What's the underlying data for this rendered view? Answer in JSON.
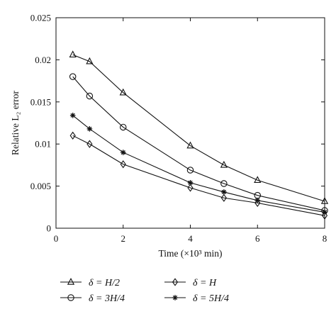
{
  "chart_data": {
    "type": "line",
    "xlabel": "Time (×10³ min)",
    "ylabel": "Relative L₂ error",
    "xlim": [
      0,
      8
    ],
    "ylim": [
      0,
      0.025
    ],
    "x_ticks": [
      0,
      2,
      4,
      6,
      8
    ],
    "x_tick_labels": [
      "0",
      "2",
      "4",
      "6",
      "8"
    ],
    "y_ticks": [
      0,
      0.005,
      0.01,
      0.015,
      0.02,
      0.025
    ],
    "y_tick_labels": [
      "0",
      "0.005",
      "0.01",
      "0.015",
      "0.02",
      "0.025"
    ],
    "grid": false,
    "legend_position": "below plot",
    "x": [
      0.5,
      1,
      2,
      4,
      5,
      6,
      8
    ],
    "series": [
      {
        "name": "δ = H/2",
        "marker": "triangle",
        "values": [
          0.0206,
          0.0198,
          0.0161,
          0.0098,
          0.0075,
          0.0057,
          0.0032
        ]
      },
      {
        "name": "δ = 3H/4",
        "marker": "circle",
        "values": [
          0.018,
          0.0157,
          0.012,
          0.0069,
          0.0053,
          0.0039,
          0.0021
        ]
      },
      {
        "name": "δ = H",
        "marker": "diamond",
        "values": [
          0.011,
          0.01,
          0.0076,
          0.0048,
          0.0036,
          0.003,
          0.0015
        ]
      },
      {
        "name": "δ = 5H/4",
        "marker": "asterisk",
        "values": [
          0.0134,
          0.0118,
          0.009,
          0.0054,
          0.0043,
          0.0033,
          0.0019
        ]
      }
    ]
  }
}
